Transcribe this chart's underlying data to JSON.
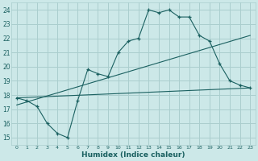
{
  "xlabel": "Humidex (Indice chaleur)",
  "xlim": [
    -0.5,
    23.5
  ],
  "ylim": [
    14.5,
    24.5
  ],
  "xticks": [
    0,
    1,
    2,
    3,
    4,
    5,
    6,
    7,
    8,
    9,
    10,
    11,
    12,
    13,
    14,
    15,
    16,
    17,
    18,
    19,
    20,
    21,
    22,
    23
  ],
  "yticks": [
    15,
    16,
    17,
    18,
    19,
    20,
    21,
    22,
    23,
    24
  ],
  "bg_color": "#cce8e8",
  "grid_color": "#aacece",
  "line_color": "#1a6060",
  "main_x": [
    0,
    1,
    2,
    3,
    4,
    5,
    6,
    7,
    8,
    9,
    10,
    11,
    12,
    13,
    14,
    15,
    16,
    17,
    18,
    19,
    20,
    21,
    22,
    23
  ],
  "main_y": [
    17.8,
    17.6,
    17.2,
    16.0,
    15.3,
    15.0,
    17.6,
    19.8,
    19.5,
    19.3,
    21.0,
    21.8,
    22.0,
    24.0,
    23.8,
    24.0,
    23.5,
    23.5,
    22.2,
    21.8,
    20.2,
    19.0,
    18.7,
    18.5
  ],
  "line2_x": [
    0,
    23
  ],
  "line2_y": [
    17.8,
    18.5
  ],
  "line3_x": [
    0,
    23
  ],
  "line3_y": [
    17.3,
    22.2
  ]
}
